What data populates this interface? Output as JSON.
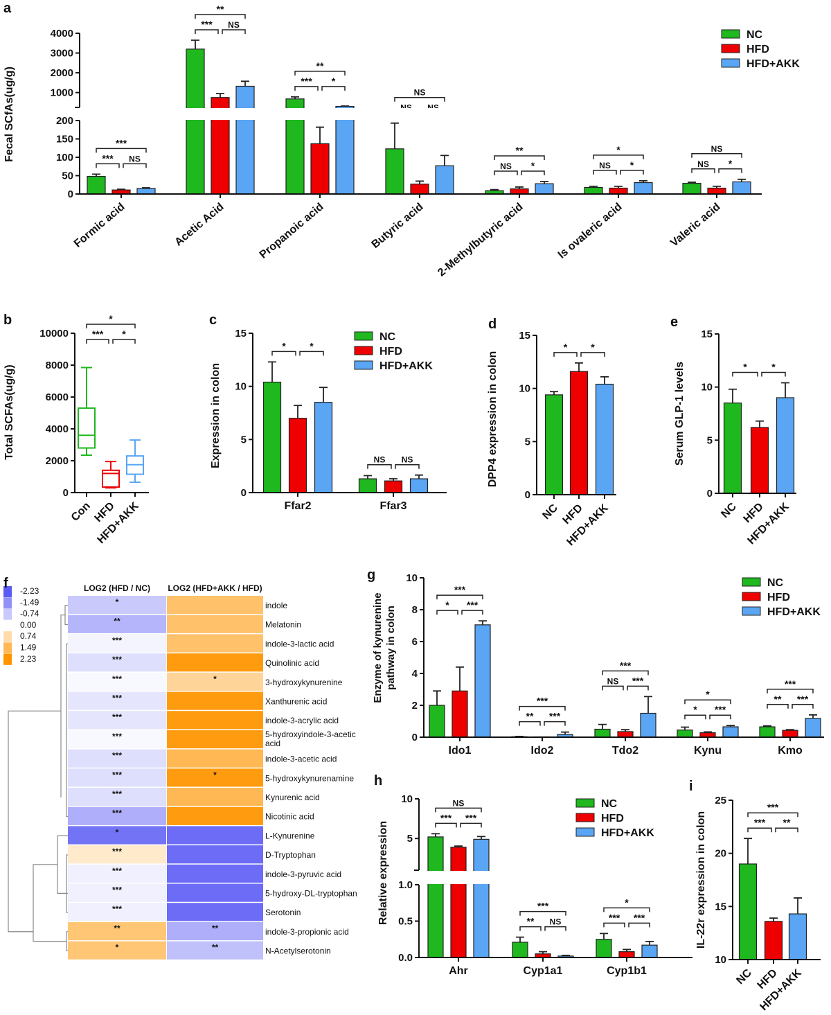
{
  "groups": [
    {
      "name": "NC",
      "color": "#1fb81f"
    },
    {
      "name": "HFD",
      "color": "#ee0000"
    },
    {
      "name": "HFD+AKK",
      "color": "#5aa6f5"
    }
  ],
  "chart_data": [
    {
      "panel": "a",
      "type": "bar",
      "ylabel": "Fecal SCfAs(ug/g)",
      "broken_axis": [
        [
          0,
          200
        ],
        [
          250,
          4000
        ]
      ],
      "yticks": [
        0,
        50,
        100,
        150,
        200,
        1000,
        2000,
        3000,
        4000
      ],
      "legend": "top-right",
      "categories": [
        "Formic acid",
        "Acetic Acid",
        "Propanoic acid",
        "Butyric acid",
        "2-Methylbutyric acid",
        "Is ovaleric acid",
        "Valeric acid"
      ],
      "values": [
        [
          48,
          11,
          15
        ],
        [
          3200,
          750,
          1320
        ],
        [
          680,
          137,
          300
        ],
        [
          123,
          27,
          77
        ],
        [
          9,
          14,
          28
        ],
        [
          18,
          16,
          31
        ],
        [
          29,
          16,
          33
        ]
      ],
      "errors": [
        [
          6,
          2,
          2
        ],
        [
          450,
          200,
          250
        ],
        [
          100,
          45,
          20
        ],
        [
          70,
          8,
          28
        ],
        [
          3,
          5,
          6
        ],
        [
          3,
          5,
          5
        ],
        [
          3,
          5,
          7
        ]
      ],
      "significance": [
        [
          "***",
          "NS",
          "***"
        ],
        [
          "***",
          "NS",
          "**"
        ],
        [
          "***",
          "*",
          "**"
        ],
        [
          "NS",
          "NS",
          "NS"
        ],
        [
          "NS",
          "*",
          "**"
        ],
        [
          "NS",
          "*",
          "*"
        ],
        [
          "NS",
          "*",
          "NS"
        ]
      ]
    },
    {
      "panel": "b",
      "type": "box",
      "ylabel": "Total SCFAs(ug/g)",
      "ylim": [
        0,
        10000
      ],
      "yticks": [
        0,
        2000,
        4000,
        6000,
        8000,
        10000
      ],
      "categories": [
        "Con",
        "HFD",
        "HFD+AKK"
      ],
      "boxes": [
        {
          "min": 2350,
          "q1": 2800,
          "median": 3600,
          "q3": 5300,
          "max": 7850
        },
        {
          "min": 300,
          "q1": 350,
          "median": 1200,
          "q3": 1400,
          "max": 1950
        },
        {
          "min": 650,
          "q1": 1150,
          "median": 1750,
          "q3": 2300,
          "max": 3300
        }
      ],
      "significance": [
        [
          "***",
          "*",
          "*"
        ]
      ]
    },
    {
      "panel": "c",
      "type": "bar",
      "ylabel": "Expression in colon",
      "ylim": [
        0,
        15
      ],
      "yticks": [
        0,
        5,
        10,
        15
      ],
      "legend": "top-right",
      "categories": [
        "Ffar2",
        "Ffar3"
      ],
      "values": [
        [
          10.4,
          7.0,
          8.5
        ],
        [
          1.3,
          1.1,
          1.3
        ]
      ],
      "errors": [
        [
          1.9,
          1.2,
          1.4
        ],
        [
          0.3,
          0.2,
          0.35
        ]
      ],
      "significance": [
        [
          "*",
          "*",
          ""
        ],
        [
          "NS",
          "NS",
          ""
        ]
      ]
    },
    {
      "panel": "d",
      "type": "bar",
      "ylabel": "DPP4 expression in colon",
      "ylim": [
        0,
        15
      ],
      "yticks": [
        0,
        5,
        10,
        15
      ],
      "categories": [
        "NC",
        "HFD",
        "HFD+AKK"
      ],
      "values": [
        [
          9.4,
          11.6,
          10.4
        ]
      ],
      "errors": [
        [
          0.3,
          0.8,
          0.7
        ]
      ],
      "significance": [
        [
          "*",
          "*",
          ""
        ]
      ]
    },
    {
      "panel": "e",
      "type": "bar",
      "ylabel": "Serum GLP-1 levels",
      "ylim": [
        0,
        15
      ],
      "yticks": [
        0,
        5,
        10,
        15
      ],
      "categories": [
        "NC",
        "HFD",
        "HFD+AKK"
      ],
      "values": [
        [
          8.5,
          6.2,
          9.0
        ]
      ],
      "errors": [
        [
          1.3,
          0.6,
          1.4
        ]
      ],
      "significance": [
        [
          "*",
          "*",
          ""
        ]
      ]
    },
    {
      "panel": "f",
      "type": "heatmap",
      "columns": [
        "LOG2 (HFD / NC)",
        "LOG2 (HFD+AKK  / HFD)"
      ],
      "scale": [
        "-2.23",
        "-1.49",
        "-0.74",
        "0.00",
        "0.74",
        "1.49",
        "2.23"
      ],
      "rows": [
        {
          "name": "indole",
          "values": [
            -0.74,
            1.3
          ],
          "stars": [
            "*",
            ""
          ]
        },
        {
          "name": "Melatonin",
          "values": [
            -1.0,
            1.3
          ],
          "stars": [
            "**",
            ""
          ]
        },
        {
          "name": "indole-3-lactic acid",
          "values": [
            -0.15,
            1.3
          ],
          "stars": [
            "***",
            ""
          ]
        },
        {
          "name": "Quinolinic  acid",
          "values": [
            -0.45,
            2.1
          ],
          "stars": [
            "***",
            ""
          ]
        },
        {
          "name": "3-hydroxykynurenine",
          "values": [
            -0.1,
            0.9
          ],
          "stars": [
            "***",
            "*"
          ]
        },
        {
          "name": "Xanthurenic acid",
          "values": [
            -0.35,
            2.1
          ],
          "stars": [
            "***",
            ""
          ]
        },
        {
          "name": "indole-3-acrylic acid",
          "values": [
            -0.35,
            2.1
          ],
          "stars": [
            "***",
            ""
          ]
        },
        {
          "name": "5-hydroxyindole-3-acetic acid",
          "values": [
            -0.1,
            2.1
          ],
          "stars": [
            "***",
            ""
          ]
        },
        {
          "name": "indole-3-acetic acid",
          "values": [
            -0.45,
            1.5
          ],
          "stars": [
            "***",
            ""
          ]
        },
        {
          "name": "5-hydroxykynurenamine",
          "values": [
            -0.45,
            2.1
          ],
          "stars": [
            "***",
            "*"
          ]
        },
        {
          "name": "Kynurenic acid",
          "values": [
            -0.45,
            1.5
          ],
          "stars": [
            "***",
            ""
          ]
        },
        {
          "name": "Nicotinic acid",
          "values": [
            -1.1,
            2.1
          ],
          "stars": [
            "***",
            ""
          ]
        },
        {
          "name": "L-Kynurenine",
          "values": [
            -1.9,
            -2.0
          ],
          "stars": [
            "*",
            ""
          ]
        },
        {
          "name": "D-Tryptophan",
          "values": [
            0.45,
            -2.0
          ],
          "stars": [
            "***",
            ""
          ]
        },
        {
          "name": "indole-3-pyruvic acid",
          "values": [
            -0.2,
            -2.0
          ],
          "stars": [
            "***",
            ""
          ]
        },
        {
          "name": "5-hydroxy-DL-tryptophan",
          "values": [
            -0.2,
            -2.0
          ],
          "stars": [
            "***",
            ""
          ]
        },
        {
          "name": "Serotonin",
          "values": [
            -0.2,
            -2.0
          ],
          "stars": [
            "***",
            ""
          ]
        },
        {
          "name": "indole-3-propionic acid",
          "values": [
            1.2,
            -1.1
          ],
          "stars": [
            "**",
            "**"
          ]
        },
        {
          "name": "N-Acetylserotonin",
          "values": [
            1.2,
            -0.85
          ],
          "stars": [
            "*",
            "**"
          ]
        }
      ]
    },
    {
      "panel": "g",
      "type": "bar",
      "ylabel": [
        "Enzyme of kynurenine",
        "pathway in colon"
      ],
      "ylim": [
        0,
        10
      ],
      "yticks": [
        0,
        2,
        4,
        6,
        8,
        10
      ],
      "legend": "top-right",
      "categories": [
        "Ido1",
        "Ido2",
        "Tdo2",
        "Kynu",
        "Kmo"
      ],
      "values": [
        [
          2.0,
          2.9,
          7.05
        ],
        [
          0.03,
          0.0,
          0.17
        ],
        [
          0.5,
          0.35,
          1.5
        ],
        [
          0.45,
          0.28,
          0.65
        ],
        [
          0.65,
          0.43,
          1.18
        ]
      ],
      "errors": [
        [
          0.9,
          1.5,
          0.25
        ],
        [
          0.02,
          0.0,
          0.15
        ],
        [
          0.3,
          0.12,
          1.05
        ],
        [
          0.18,
          0.05,
          0.08
        ],
        [
          0.06,
          0.04,
          0.22
        ]
      ],
      "significance": [
        [
          "*",
          "***",
          "***"
        ],
        [
          "**",
          "***",
          "***"
        ],
        [
          "NS",
          "***",
          "***"
        ],
        [
          "*",
          "***",
          "*"
        ],
        [
          "**",
          "***",
          "***"
        ]
      ]
    },
    {
      "panel": "h",
      "type": "bar",
      "ylabel": "Relative expression",
      "broken_axis": [
        [
          0,
          1.0
        ],
        [
          1.0,
          10
        ]
      ],
      "yticks": [
        "0.0",
        "0.5",
        "1.0",
        "5",
        "10"
      ],
      "legend": "top-right",
      "categories": [
        "Ahr",
        "Cyp1a1",
        "Cyp1b1"
      ],
      "values": [
        [
          5.2,
          3.9,
          4.9
        ],
        [
          0.21,
          0.05,
          0.02
        ],
        [
          0.25,
          0.08,
          0.17
        ]
      ],
      "errors": [
        [
          0.4,
          0.15,
          0.35
        ],
        [
          0.07,
          0.03,
          0.01
        ],
        [
          0.08,
          0.03,
          0.05
        ]
      ],
      "significance": [
        [
          "***",
          "***",
          "NS"
        ],
        [
          "**",
          "NS",
          "***"
        ],
        [
          "***",
          "***",
          "*"
        ]
      ]
    },
    {
      "panel": "i",
      "type": "bar",
      "ylabel": "IL-22r expression in colon",
      "ylim": [
        10,
        25
      ],
      "yticks": [
        10,
        15,
        20,
        25
      ],
      "categories": [
        "NC",
        "HFD",
        "HFD+AKK"
      ],
      "values": [
        [
          19.0,
          13.6,
          14.3
        ]
      ],
      "errors": [
        [
          2.4,
          0.3,
          1.5
        ]
      ],
      "significance": [
        [
          "***",
          "**",
          "***"
        ]
      ]
    }
  ]
}
